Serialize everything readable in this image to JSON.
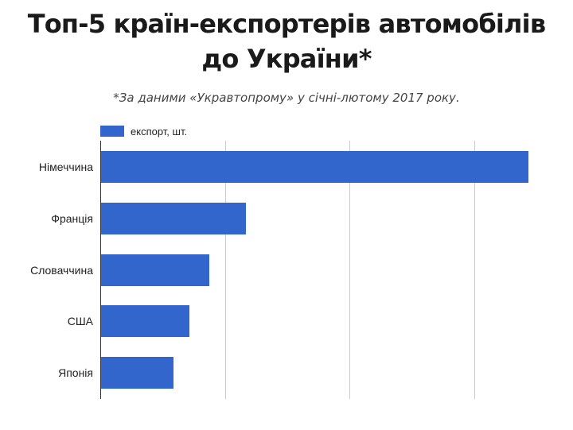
{
  "title_line1": "Топ-5 країн-експортерів автомобілів",
  "title_line2": "до України*",
  "subtitle": "*За даними «Укравтопрому» у січні-лютому 2017 року.",
  "legend": {
    "label": "експорт, шт.",
    "color": "#3366cc"
  },
  "chart_data": {
    "type": "bar",
    "orientation": "horizontal",
    "title": "Топ-5 країн-експортерів автомобілів до України*",
    "subtitle": "*За даними «Укравтопрому» у січні-лютому 2017 року.",
    "categories": [
      "Німеччина",
      "Франція",
      "Словаччина",
      "США",
      "Японія"
    ],
    "series": [
      {
        "name": "експорт, шт.",
        "color": "#3366cc",
        "values": [
          3.43,
          1.16,
          0.87,
          0.71,
          0.58
        ]
      }
    ],
    "xlabel": "",
    "ylabel": "",
    "x_tick_labels_visible": false,
    "value_units": "relative (gridline interval = 1 unit; no axis tick labels shown)",
    "xlim": [
      0,
      3.5
    ],
    "grid": true,
    "legend_position": "top"
  }
}
